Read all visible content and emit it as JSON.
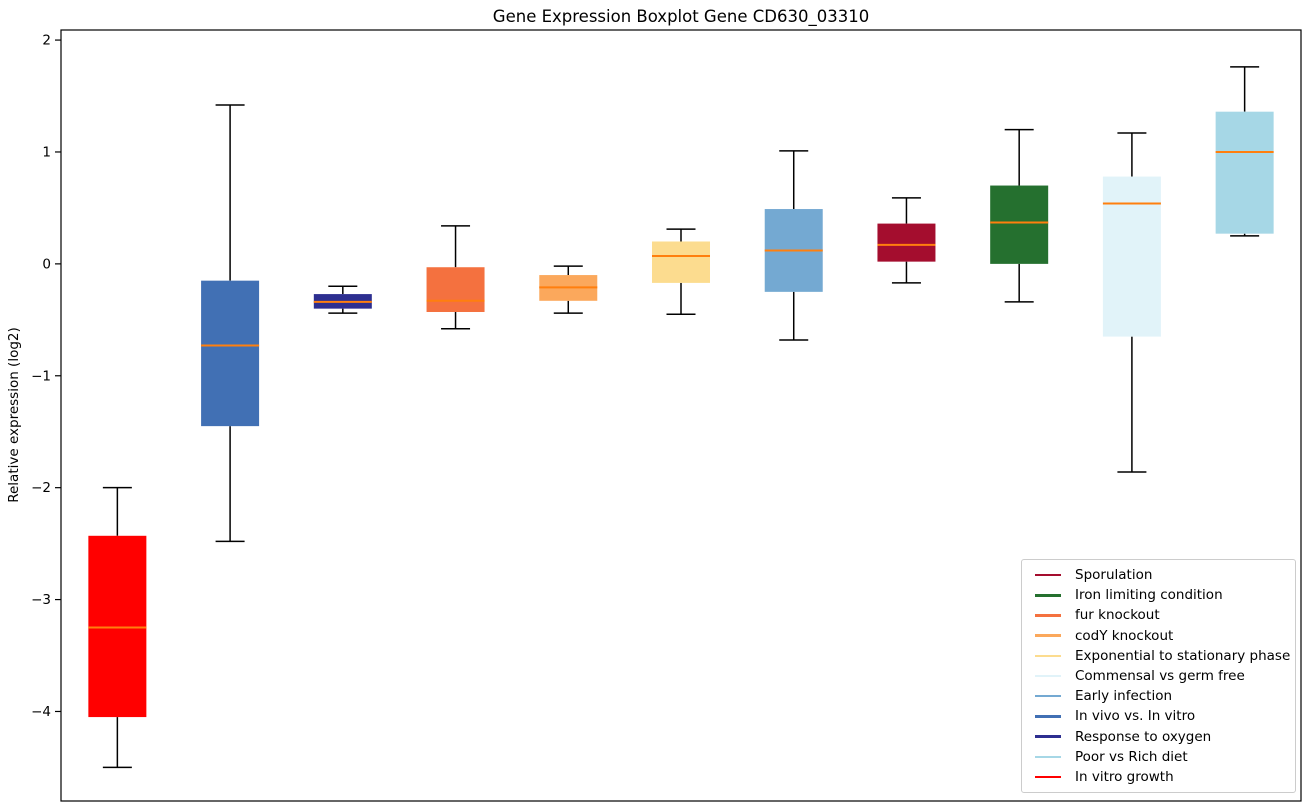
{
  "figure": {
    "title": "Gene Expression Boxplot Gene CD630_03310",
    "ylabel": "Relative expression (log2)"
  },
  "chart_data": {
    "type": "boxplot",
    "title": "Gene Expression Boxplot Gene CD630_03310",
    "xlabel": "",
    "ylabel": "Relative expression (log2)",
    "ylim": [
      -4.8,
      2.09
    ],
    "yticks": [
      2,
      1,
      0,
      -1,
      -2,
      -3,
      -4
    ],
    "ytick_labels": [
      "2",
      "1",
      "0",
      "−1",
      "−2",
      "−3",
      "−4"
    ],
    "xtick_labels": [],
    "grid": false,
    "median_color": "#ff7f0e",
    "whisker_color": "#000000",
    "legend_position": "lower right",
    "series": [
      {
        "name": "In vitro growth",
        "color": "#ff0000",
        "whisker_low": -4.5,
        "q1": -4.05,
        "median": -3.25,
        "q3": -2.43,
        "whisker_high": -2.0
      },
      {
        "name": "In vivo vs. In vitro",
        "color": "#4170b4",
        "whisker_low": -2.48,
        "q1": -1.45,
        "median": -0.73,
        "q3": -0.15,
        "whisker_high": 1.42
      },
      {
        "name": "Response to oxygen",
        "color": "#2d2f90",
        "whisker_low": -0.44,
        "q1": -0.4,
        "median": -0.34,
        "q3": -0.27,
        "whisker_high": -0.2
      },
      {
        "name": "fur knockout",
        "color": "#f4713f",
        "whisker_low": -0.58,
        "q1": -0.43,
        "median": -0.33,
        "q3": -0.03,
        "whisker_high": 0.34
      },
      {
        "name": "codY knockout",
        "color": "#fba85c",
        "whisker_low": -0.44,
        "q1": -0.33,
        "median": -0.21,
        "q3": -0.1,
        "whisker_high": -0.02
      },
      {
        "name": "Exponential to stationary phase",
        "color": "#fcdc8f",
        "whisker_low": -0.45,
        "q1": -0.17,
        "median": 0.07,
        "q3": 0.2,
        "whisker_high": 0.31
      },
      {
        "name": "Early infection",
        "color": "#74a9d2",
        "whisker_low": -0.68,
        "q1": -0.25,
        "median": 0.12,
        "q3": 0.49,
        "whisker_high": 1.01
      },
      {
        "name": "Sporulation",
        "color": "#a40d2e",
        "whisker_low": -0.17,
        "q1": 0.02,
        "median": 0.17,
        "q3": 0.36,
        "whisker_high": 0.59
      },
      {
        "name": "Iron limiting condition",
        "color": "#25702f",
        "whisker_low": -0.34,
        "q1": 0.0,
        "median": 0.37,
        "q3": 0.7,
        "whisker_high": 1.2
      },
      {
        "name": "Commensal vs germ free",
        "color": "#e1f3f9",
        "whisker_low": -1.86,
        "q1": -0.65,
        "median": 0.54,
        "q3": 0.78,
        "whisker_high": 1.17
      },
      {
        "name": "Poor vs Rich diet",
        "color": "#a6d7e6",
        "whisker_low": 0.25,
        "q1": 0.27,
        "median": 1.0,
        "q3": 1.36,
        "whisker_high": 1.76
      }
    ],
    "legend": [
      {
        "label": "Sporulation",
        "color": "#a40d2e"
      },
      {
        "label": "Iron limiting condition",
        "color": "#25702f"
      },
      {
        "label": "fur knockout",
        "color": "#f4713f"
      },
      {
        "label": "codY knockout",
        "color": "#fba85c"
      },
      {
        "label": "Exponential to stationary phase",
        "color": "#fcdc8f"
      },
      {
        "label": "Commensal vs germ free",
        "color": "#e1f3f9"
      },
      {
        "label": "Early infection",
        "color": "#74a9d2"
      },
      {
        "label": "In vivo vs. In vitro",
        "color": "#4170b4"
      },
      {
        "label": "Response to oxygen",
        "color": "#2d2f90"
      },
      {
        "label": "Poor vs Rich diet",
        "color": "#a6d7e6"
      },
      {
        "label": "In vitro growth",
        "color": "#ff0000"
      }
    ]
  }
}
